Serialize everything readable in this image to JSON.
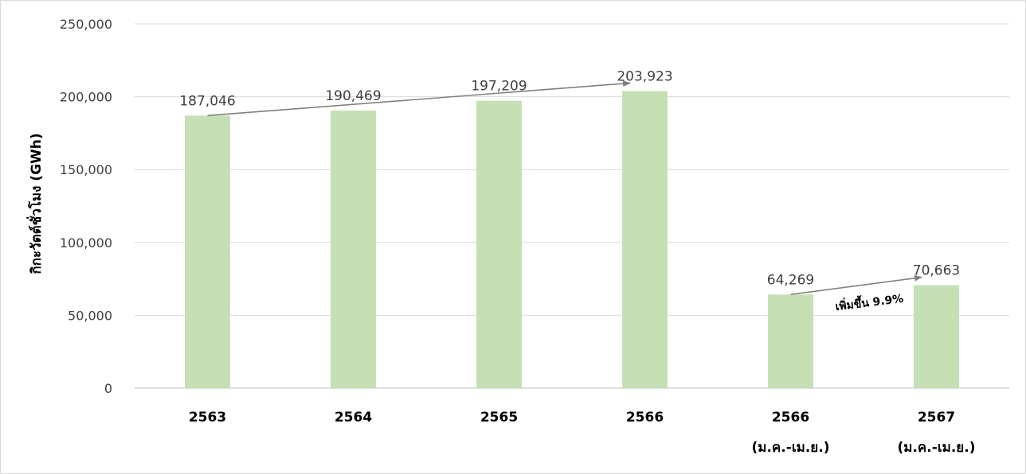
{
  "chart_data": {
    "type": "bar",
    "ylabel": "กิกะวัตต์ชั่วโมง (GWh)",
    "ylim": [
      0,
      250000
    ],
    "yticks": [
      0,
      50000,
      100000,
      150000,
      200000,
      250000
    ],
    "ytick_labels": [
      "0",
      "50,000",
      "100,000",
      "150,000",
      "200,000",
      "250,000"
    ],
    "grid": true,
    "categories": [
      {
        "label": "2563",
        "sublabel": ""
      },
      {
        "label": "2564",
        "sublabel": ""
      },
      {
        "label": "2565",
        "sublabel": ""
      },
      {
        "label": "2566",
        "sublabel": ""
      },
      {
        "label": "2566",
        "sublabel": "(ม.ค.-เม.ย.)"
      },
      {
        "label": "2567",
        "sublabel": "(ม.ค.-เม.ย.)"
      }
    ],
    "values": [
      187046,
      190469,
      197209,
      203923,
      64269,
      70663
    ],
    "value_labels": [
      "187,046",
      "190,469",
      "197,209",
      "203,923",
      "64,269",
      "70,663"
    ],
    "bar_color": "#c5e0b4",
    "arrows": [
      {
        "from_index": 0,
        "to_index": 3,
        "color": "#808080"
      },
      {
        "from_index": 4,
        "to_index": 5,
        "color": "#808080"
      }
    ],
    "annotation": "เพิ่มขึ้น 9.9%"
  }
}
